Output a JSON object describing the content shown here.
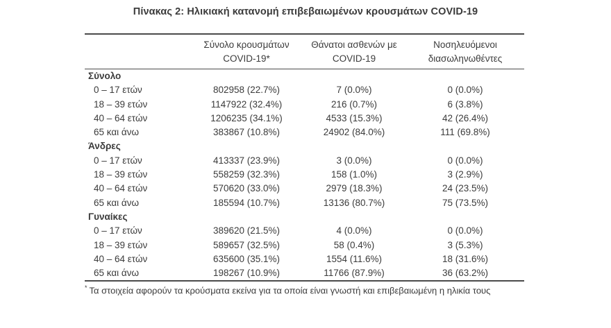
{
  "title": "Πίνακας 2: Ηλικιακή κατανομή επιβεβαιωμένων κρουσμάτων COVID-19",
  "table": {
    "headers": [
      {
        "line1": "Σύνολο κρουσμάτων",
        "line2": "COVID-19*"
      },
      {
        "line1": "Θάνατοι ασθενών με",
        "line2": "COVID-19"
      },
      {
        "line1": "Νοσηλευόμενοι",
        "line2": "διασωληνωθέντες"
      }
    ],
    "sections": [
      {
        "label": "Σύνολο",
        "rows": [
          {
            "age": "0 – 17 ετών",
            "cases": "802958 (22.7%)",
            "deaths": "7 (0.0%)",
            "intubated": "0 (0.0%)"
          },
          {
            "age": "18 – 39 ετών",
            "cases": "1147922 (32.4%)",
            "deaths": "216 (0.7%)",
            "intubated": "6 (3.8%)"
          },
          {
            "age": "40 – 64 ετών",
            "cases": "1206235 (34.1%)",
            "deaths": "4533 (15.3%)",
            "intubated": "42 (26.4%)"
          },
          {
            "age": "65 και άνω",
            "cases": "383867 (10.8%)",
            "deaths": "24902 (84.0%)",
            "intubated": "111 (69.8%)"
          }
        ]
      },
      {
        "label": "Άνδρες",
        "rows": [
          {
            "age": "0 – 17 ετών",
            "cases": "413337 (23.9%)",
            "deaths": "3 (0.0%)",
            "intubated": "0 (0.0%)"
          },
          {
            "age": "18 – 39 ετών",
            "cases": "558259 (32.3%)",
            "deaths": "158 (1.0%)",
            "intubated": "3 (2.9%)"
          },
          {
            "age": "40 – 64 ετών",
            "cases": "570620 (33.0%)",
            "deaths": "2979 (18.3%)",
            "intubated": "24 (23.5%)"
          },
          {
            "age": "65 και άνω",
            "cases": "185594 (10.7%)",
            "deaths": "13136 (80.7%)",
            "intubated": "75 (73.5%)"
          }
        ]
      },
      {
        "label": "Γυναίκες",
        "rows": [
          {
            "age": "0 – 17 ετών",
            "cases": "389620 (21.5%)",
            "deaths": "4 (0.0%)",
            "intubated": "0 (0.0%)"
          },
          {
            "age": "18 – 39 ετών",
            "cases": "589657 (32.5%)",
            "deaths": "58 (0.4%)",
            "intubated": "3 (5.3%)"
          },
          {
            "age": "40 – 64 ετών",
            "cases": "635600 (35.1%)",
            "deaths": "1554 (11.6%)",
            "intubated": "18 (31.6%)"
          },
          {
            "age": "65 και άνω",
            "cases": "198267 (10.9%)",
            "deaths": "11766 (87.9%)",
            "intubated": "36 (63.2%)"
          }
        ]
      }
    ]
  },
  "footnote": {
    "marker": "*",
    "text": "Τα στοιχεία αφορούν τα κρούσματα εκείνα για τα οποία είναι γνωστή και επιβεβαιωμένη η ηλικία τους"
  },
  "colors": {
    "text": "#3b3b3b",
    "rule": "#4a4a4a",
    "background": "#ffffff"
  }
}
